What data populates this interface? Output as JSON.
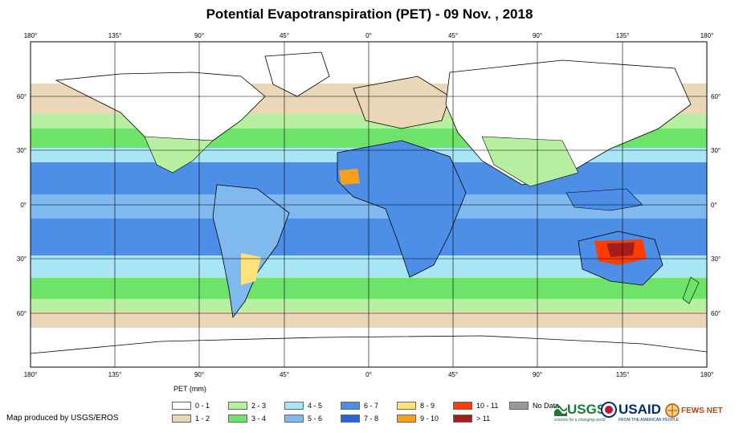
{
  "title": "Potential Evapotranspiration (PET) - 09 Nov. , 2018",
  "axes": {
    "lon_ticks": [
      "180°",
      "135°",
      "90°",
      "45°",
      "0°",
      "45°",
      "90°",
      "135°",
      "180°"
    ],
    "lat_ticks": [
      "60°",
      "30°",
      "0°",
      "30°",
      "60°"
    ]
  },
  "legend": {
    "title": "PET (mm)",
    "items": [
      {
        "label": "0 - 1",
        "color": "#ffffff"
      },
      {
        "label": "1 - 2",
        "color": "#ead7b7"
      },
      {
        "label": "2 - 3",
        "color": "#b7f0a0"
      },
      {
        "label": "3 - 4",
        "color": "#6ee36a"
      },
      {
        "label": "4 - 5",
        "color": "#a8e6f5"
      },
      {
        "label": "5 - 6",
        "color": "#7fb9ee"
      },
      {
        "label": "6 - 7",
        "color": "#4d8fe6"
      },
      {
        "label": "7 - 8",
        "color": "#2a63d6"
      },
      {
        "label": "8 - 9",
        "color": "#ffe27a"
      },
      {
        "label": "9 - 10",
        "color": "#ff9e1a"
      },
      {
        "label": "10 - 11",
        "color": "#ff3d00"
      },
      {
        "label": "> 11",
        "color": "#a51c1c"
      },
      {
        "label": "No Data",
        "color": "#999999"
      }
    ]
  },
  "credit": "Map produced by USGS/EROS",
  "logos": {
    "usgs": "USGS",
    "usgs_tagline": "science for a changing world",
    "usaid": "USAID",
    "usaid_tagline": "FROM THE AMERICAN PEOPLE",
    "fewsnet": "FEWS NET"
  }
}
